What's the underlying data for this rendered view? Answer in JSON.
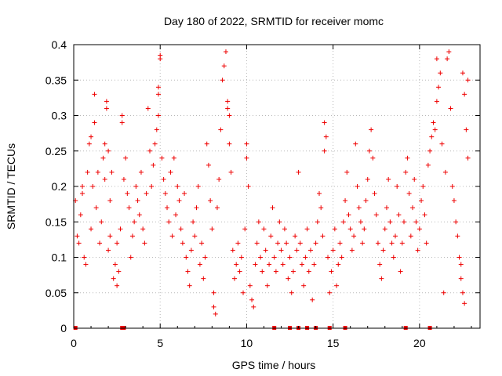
{
  "chart_data": {
    "type": "scatter",
    "title": "Day 180 of 2022, SRMTID for receiver momc",
    "xlabel": "GPS time / hours",
    "ylabel": "SRMTID / TECUs",
    "xlim": [
      0,
      23.5
    ],
    "ylim": [
      0,
      0.4
    ],
    "x_ticks": [
      0,
      5,
      10,
      15,
      20
    ],
    "x_tick_labels": [
      "0",
      "5",
      "10",
      "15",
      "20"
    ],
    "y_ticks": [
      0,
      0.05,
      0.1,
      0.15,
      0.2,
      0.25,
      0.3,
      0.35,
      0.4
    ],
    "y_tick_labels": [
      "0",
      "0.05",
      "0.1",
      "0.15",
      "0.2",
      "0.25",
      "0.3",
      "0.35",
      "0.4"
    ],
    "grid": true,
    "marker": "+",
    "color": "#ee0000",
    "series": [
      {
        "name": "SRMTID",
        "points": [
          [
            0.1,
            0.18
          ],
          [
            0.2,
            0.13
          ],
          [
            0.3,
            0.12
          ],
          [
            0.4,
            0.16
          ],
          [
            0.5,
            0.2
          ],
          [
            0.5,
            0.19
          ],
          [
            0.6,
            0.1
          ],
          [
            0.7,
            0.09
          ],
          [
            0.8,
            0.22
          ],
          [
            0.9,
            0.26
          ],
          [
            1.0,
            0.14
          ],
          [
            1.0,
            0.27
          ],
          [
            1.1,
            0.2
          ],
          [
            1.2,
            0.33
          ],
          [
            1.2,
            0.29
          ],
          [
            1.3,
            0.17
          ],
          [
            1.4,
            0.22
          ],
          [
            1.5,
            0.12
          ],
          [
            1.6,
            0.15
          ],
          [
            1.7,
            0.24
          ],
          [
            1.8,
            0.21
          ],
          [
            1.8,
            0.26
          ],
          [
            1.9,
            0.32
          ],
          [
            1.9,
            0.31
          ],
          [
            2.0,
            0.25
          ],
          [
            2.1,
            0.18
          ],
          [
            2.2,
            0.22
          ],
          [
            2.0,
            0.11
          ],
          [
            2.1,
            0.13
          ],
          [
            2.3,
            0.07
          ],
          [
            2.4,
            0.09
          ],
          [
            2.5,
            0.12
          ],
          [
            2.5,
            0.06
          ],
          [
            2.6,
            0.08
          ],
          [
            2.7,
            0.14
          ],
          [
            2.8,
            0.3
          ],
          [
            2.8,
            0.29
          ],
          [
            2.9,
            0.21
          ],
          [
            3.0,
            0.24
          ],
          [
            3.1,
            0.19
          ],
          [
            3.2,
            0.17
          ],
          [
            3.3,
            0.1
          ],
          [
            3.4,
            0.13
          ],
          [
            3.5,
            0.15
          ],
          [
            3.6,
            0.2
          ],
          [
            3.7,
            0.18
          ],
          [
            3.8,
            0.16
          ],
          [
            3.9,
            0.22
          ],
          [
            4.0,
            0.14
          ],
          [
            4.1,
            0.12
          ],
          [
            4.2,
            0.19
          ],
          [
            4.3,
            0.31
          ],
          [
            4.4,
            0.25
          ],
          [
            4.5,
            0.2
          ],
          [
            4.6,
            0.23
          ],
          [
            4.7,
            0.26
          ],
          [
            4.8,
            0.28
          ],
          [
            4.9,
            0.3
          ],
          [
            4.9,
            0.34
          ],
          [
            5.0,
            0.38
          ],
          [
            5.0,
            0.385
          ],
          [
            4.9,
            0.33
          ],
          [
            5.1,
            0.24
          ],
          [
            5.2,
            0.21
          ],
          [
            5.3,
            0.19
          ],
          [
            5.4,
            0.17
          ],
          [
            5.5,
            0.15
          ],
          [
            5.6,
            0.22
          ],
          [
            5.7,
            0.13
          ],
          [
            5.8,
            0.24
          ],
          [
            5.9,
            0.16
          ],
          [
            6.0,
            0.2
          ],
          [
            6.1,
            0.18
          ],
          [
            6.2,
            0.14
          ],
          [
            6.3,
            0.12
          ],
          [
            6.4,
            0.19
          ],
          [
            6.5,
            0.1
          ],
          [
            6.6,
            0.08
          ],
          [
            6.7,
            0.06
          ],
          [
            6.8,
            0.11
          ],
          [
            6.9,
            0.15
          ],
          [
            7.0,
            0.13
          ],
          [
            7.1,
            0.17
          ],
          [
            7.2,
            0.2
          ],
          [
            7.3,
            0.09
          ],
          [
            7.4,
            0.12
          ],
          [
            7.5,
            0.07
          ],
          [
            7.6,
            0.1
          ],
          [
            7.7,
            0.26
          ],
          [
            7.8,
            0.23
          ],
          [
            7.9,
            0.18
          ],
          [
            8.0,
            0.14
          ],
          [
            8.1,
            0.03
          ],
          [
            8.2,
            0.02
          ],
          [
            8.1,
            0.05
          ],
          [
            8.3,
            0.17
          ],
          [
            8.4,
            0.21
          ],
          [
            8.5,
            0.28
          ],
          [
            8.6,
            0.35
          ],
          [
            8.7,
            0.37
          ],
          [
            8.8,
            0.39
          ],
          [
            8.9,
            0.32
          ],
          [
            8.9,
            0.31
          ],
          [
            9.0,
            0.26
          ],
          [
            9.0,
            0.3
          ],
          [
            9.1,
            0.22
          ],
          [
            9.2,
            0.11
          ],
          [
            9.3,
            0.07
          ],
          [
            9.4,
            0.09
          ],
          [
            9.5,
            0.12
          ],
          [
            9.6,
            0.08
          ],
          [
            9.7,
            0.1
          ],
          [
            9.8,
            0.05
          ],
          [
            9.9,
            0.14
          ],
          [
            10.0,
            0.26
          ],
          [
            10.0,
            0.24
          ],
          [
            10.1,
            0.2
          ],
          [
            10.2,
            0.06
          ],
          [
            10.3,
            0.04
          ],
          [
            10.4,
            0.03
          ],
          [
            10.5,
            0.09
          ],
          [
            10.6,
            0.12
          ],
          [
            10.7,
            0.15
          ],
          [
            10.8,
            0.1
          ],
          [
            10.9,
            0.08
          ],
          [
            11.0,
            0.14
          ],
          [
            11.1,
            0.11
          ],
          [
            11.2,
            0.06
          ],
          [
            11.3,
            0.09
          ],
          [
            11.4,
            0.13
          ],
          [
            11.5,
            0.17
          ],
          [
            11.6,
            0.1
          ],
          [
            11.7,
            0.08
          ],
          [
            11.8,
            0.12
          ],
          [
            11.9,
            0.15
          ],
          [
            12.0,
            0.11
          ],
          [
            12.1,
            0.09
          ],
          [
            12.2,
            0.14
          ],
          [
            12.3,
            0.12
          ],
          [
            12.4,
            0.07
          ],
          [
            12.5,
            0.1
          ],
          [
            12.6,
            0.05
          ],
          [
            12.7,
            0.08
          ],
          [
            12.8,
            0.13
          ],
          [
            12.9,
            0.11
          ],
          [
            13.0,
            0.22
          ],
          [
            13.1,
            0.12
          ],
          [
            13.2,
            0.09
          ],
          [
            13.3,
            0.06
          ],
          [
            13.4,
            0.1
          ],
          [
            13.5,
            0.14
          ],
          [
            13.6,
            0.08
          ],
          [
            13.7,
            0.11
          ],
          [
            13.8,
            0.04
          ],
          [
            13.9,
            0.09
          ],
          [
            14.0,
            0.12
          ],
          [
            14.1,
            0.15
          ],
          [
            14.2,
            0.19
          ],
          [
            14.3,
            0.17
          ],
          [
            14.4,
            0.13
          ],
          [
            14.5,
            0.25
          ],
          [
            14.5,
            0.29
          ],
          [
            14.6,
            0.27
          ],
          [
            14.7,
            0.1
          ],
          [
            14.8,
            0.05
          ],
          [
            14.9,
            0.08
          ],
          [
            15.0,
            0.11
          ],
          [
            15.1,
            0.14
          ],
          [
            15.2,
            0.06
          ],
          [
            15.3,
            0.09
          ],
          [
            15.4,
            0.12
          ],
          [
            15.5,
            0.1
          ],
          [
            15.6,
            0.15
          ],
          [
            15.7,
            0.18
          ],
          [
            15.8,
            0.22
          ],
          [
            15.9,
            0.16
          ],
          [
            16.0,
            0.14
          ],
          [
            16.1,
            0.11
          ],
          [
            16.2,
            0.13
          ],
          [
            16.3,
            0.26
          ],
          [
            16.4,
            0.2
          ],
          [
            16.5,
            0.17
          ],
          [
            16.6,
            0.15
          ],
          [
            16.7,
            0.12
          ],
          [
            16.8,
            0.14
          ],
          [
            16.9,
            0.18
          ],
          [
            17.0,
            0.21
          ],
          [
            17.1,
            0.25
          ],
          [
            17.2,
            0.28
          ],
          [
            17.3,
            0.24
          ],
          [
            17.4,
            0.19
          ],
          [
            17.5,
            0.16
          ],
          [
            17.6,
            0.12
          ],
          [
            17.7,
            0.09
          ],
          [
            17.8,
            0.07
          ],
          [
            17.9,
            0.11
          ],
          [
            18.0,
            0.14
          ],
          [
            18.1,
            0.17
          ],
          [
            18.2,
            0.21
          ],
          [
            18.3,
            0.15
          ],
          [
            18.4,
            0.12
          ],
          [
            18.5,
            0.1
          ],
          [
            18.6,
            0.13
          ],
          [
            18.7,
            0.2
          ],
          [
            18.8,
            0.16
          ],
          [
            18.9,
            0.08
          ],
          [
            19.0,
            0.12
          ],
          [
            19.1,
            0.15
          ],
          [
            19.2,
            0.22
          ],
          [
            19.3,
            0.24
          ],
          [
            19.4,
            0.19
          ],
          [
            19.5,
            0.13
          ],
          [
            19.6,
            0.17
          ],
          [
            19.7,
            0.21
          ],
          [
            19.8,
            0.15
          ],
          [
            19.9,
            0.11
          ],
          [
            20.0,
            0.14
          ],
          [
            20.1,
            0.18
          ],
          [
            20.2,
            0.2
          ],
          [
            20.3,
            0.16
          ],
          [
            20.4,
            0.12
          ],
          [
            20.5,
            0.23
          ],
          [
            20.6,
            0.25
          ],
          [
            20.7,
            0.27
          ],
          [
            20.8,
            0.29
          ],
          [
            20.9,
            0.28
          ],
          [
            21.0,
            0.32
          ],
          [
            21.0,
            0.38
          ],
          [
            21.1,
            0.34
          ],
          [
            21.2,
            0.36
          ],
          [
            21.3,
            0.26
          ],
          [
            21.4,
            0.05
          ],
          [
            21.5,
            0.22
          ],
          [
            21.6,
            0.38
          ],
          [
            21.7,
            0.39
          ],
          [
            21.8,
            0.31
          ],
          [
            21.9,
            0.2
          ],
          [
            22.0,
            0.18
          ],
          [
            22.1,
            0.15
          ],
          [
            22.2,
            0.13
          ],
          [
            22.3,
            0.1
          ],
          [
            22.4,
            0.07
          ],
          [
            22.4,
            0.09
          ],
          [
            22.5,
            0.36
          ],
          [
            22.6,
            0.33
          ],
          [
            22.7,
            0.28
          ],
          [
            22.8,
            0.24
          ],
          [
            22.8,
            0.35
          ],
          [
            22.5,
            0.05
          ],
          [
            22.6,
            0.035
          ]
        ]
      }
    ],
    "data_gaps_at_zero": [
      0.1,
      2.8,
      2.9,
      11.6,
      12.5,
      13.0,
      13.5,
      14.0,
      14.8,
      15.7,
      19.2,
      20.6
    ]
  }
}
